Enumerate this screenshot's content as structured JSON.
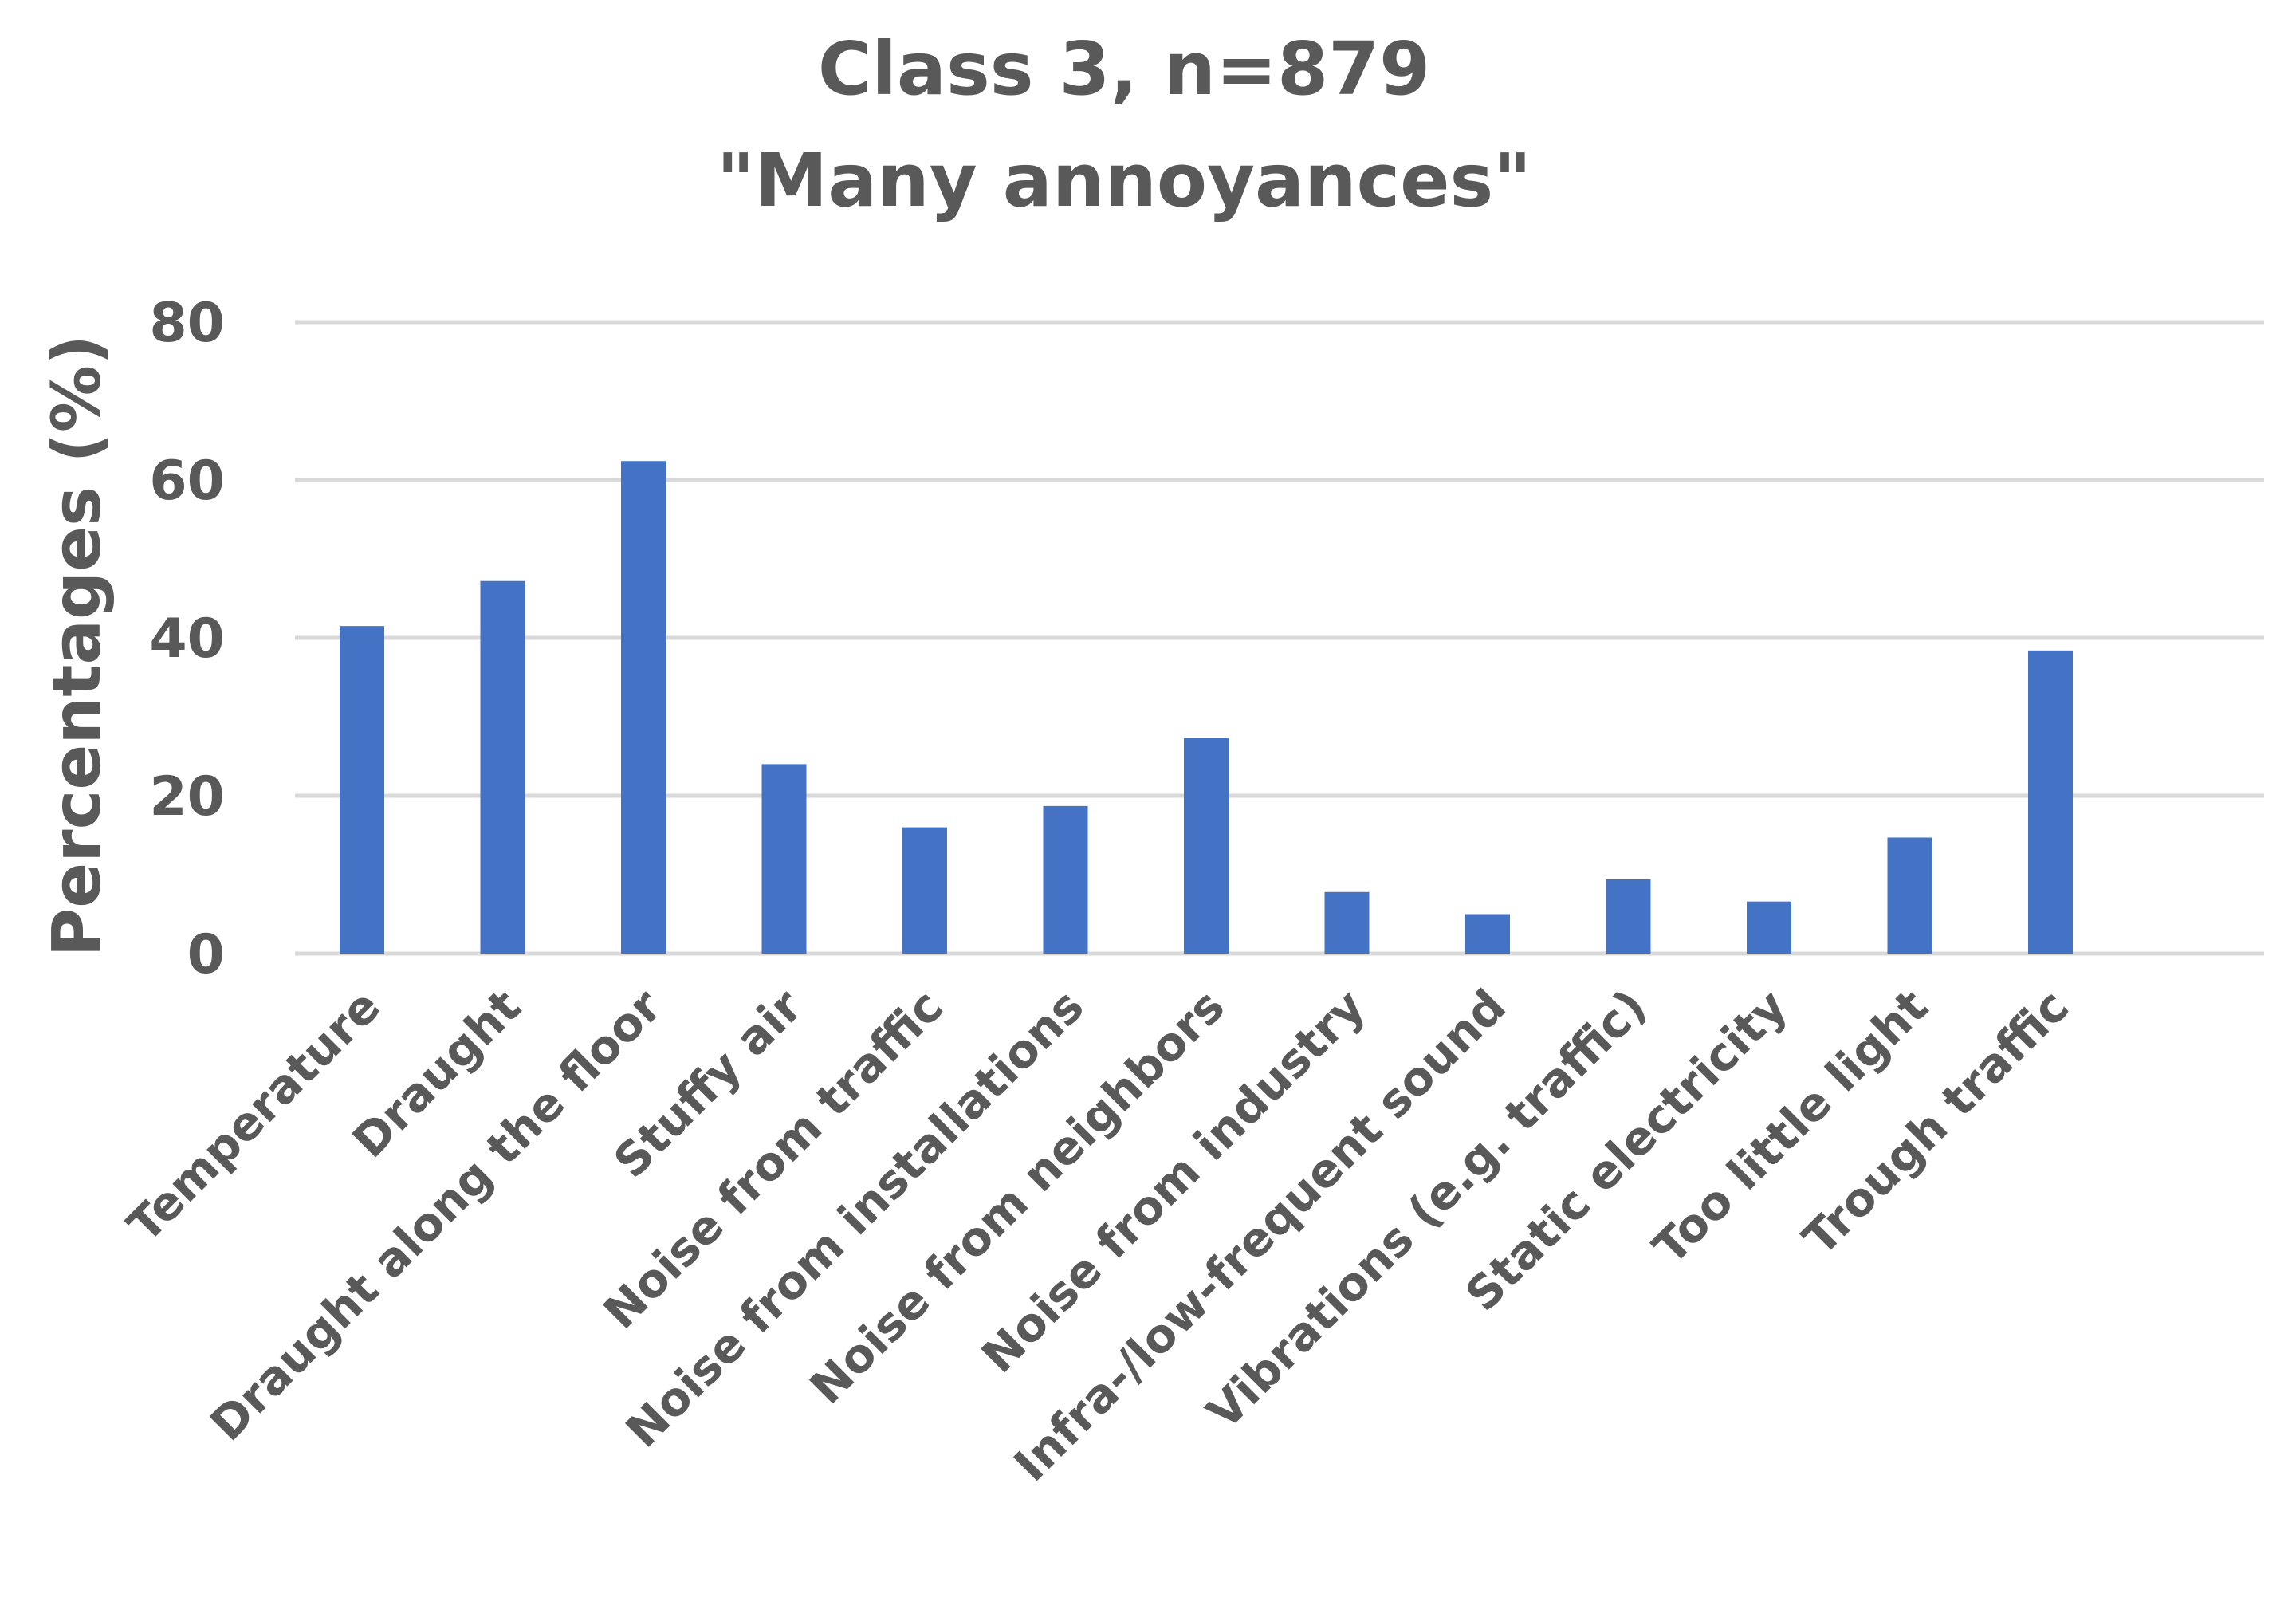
{
  "chart_data": {
    "type": "bar",
    "title": [
      "Class 3, n=879",
      "\"Many annoyances\""
    ],
    "xlabel": "",
    "ylabel": "Percentages (%)",
    "ylim": [
      0,
      80
    ],
    "yticks": [
      0,
      20,
      40,
      60,
      80
    ],
    "grid": true,
    "legend": "none",
    "bar_color": "#4472C4",
    "categories": [
      "Temperature",
      "Draught",
      "Draught along the floor",
      "Stuffy air",
      "Noise from traffic",
      "Noise from installations",
      "Noise from neighbors",
      "Noise from industry",
      "Infra-/low-frequent sound",
      "Vibrations (e.g. traffic)",
      "Static electricity",
      "Too little light",
      "Trough traffic"
    ],
    "values": [
      41.5,
      47.2,
      62.4,
      24,
      16,
      18.7,
      27.3,
      7.8,
      5,
      9.4,
      6.6,
      14.7,
      38.4
    ]
  }
}
